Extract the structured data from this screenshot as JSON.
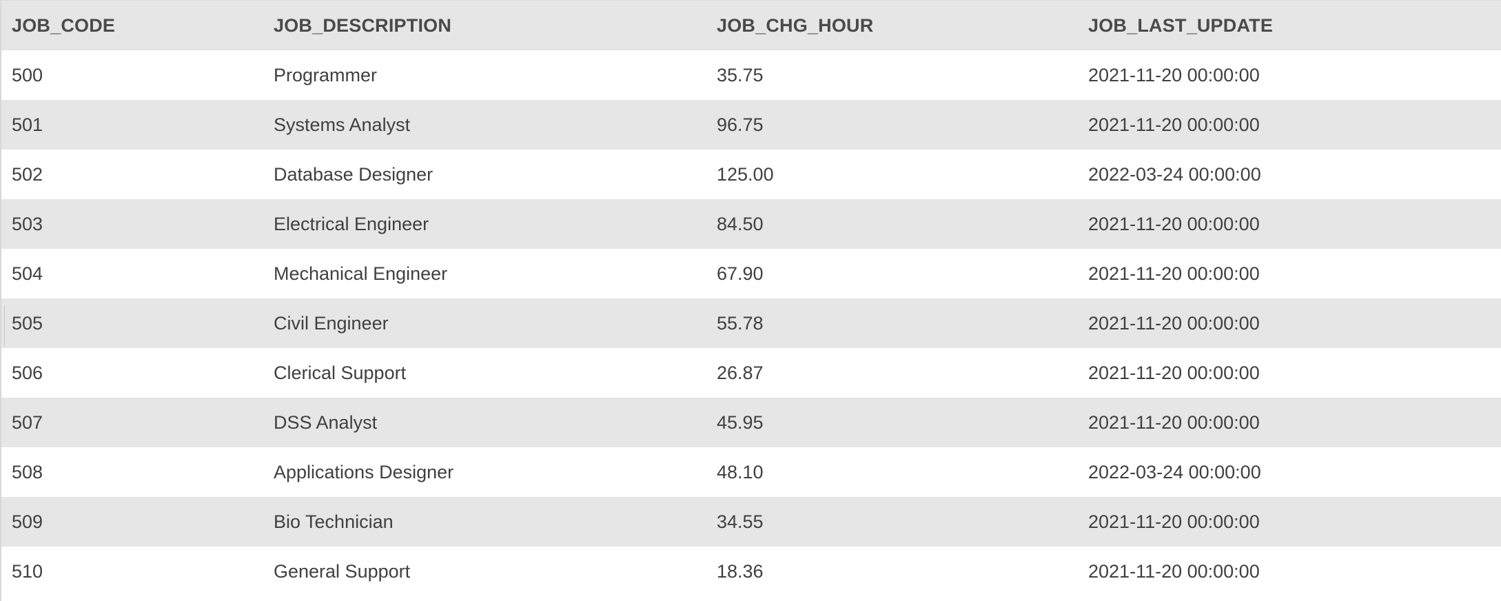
{
  "table": {
    "columns": [
      "JOB_CODE",
      "JOB_DESCRIPTION",
      "JOB_CHG_HOUR",
      "JOB_LAST_UPDATE"
    ],
    "rows": [
      [
        "500",
        "Programmer",
        "35.75",
        "2021-11-20 00:00:00"
      ],
      [
        "501",
        "Systems Analyst",
        "96.75",
        "2021-11-20 00:00:00"
      ],
      [
        "502",
        "Database Designer",
        "125.00",
        "2022-03-24 00:00:00"
      ],
      [
        "503",
        "Electrical Engineer",
        "84.50",
        "2021-11-20 00:00:00"
      ],
      [
        "504",
        "Mechanical Engineer",
        "67.90",
        "2021-11-20 00:00:00"
      ],
      [
        "505",
        "Civil Engineer",
        "55.78",
        "2021-11-20 00:00:00"
      ],
      [
        "506",
        "Clerical Support",
        "26.87",
        "2021-11-20 00:00:00"
      ],
      [
        "507",
        "DSS Analyst",
        "45.95",
        "2021-11-20 00:00:00"
      ],
      [
        "508",
        "Applications Designer",
        "48.10",
        "2022-03-24 00:00:00"
      ],
      [
        "509",
        "Bio Technician",
        "34.55",
        "2021-11-20 00:00:00"
      ],
      [
        "510",
        "General Support",
        "18.36",
        "2021-11-20 00:00:00"
      ]
    ]
  }
}
